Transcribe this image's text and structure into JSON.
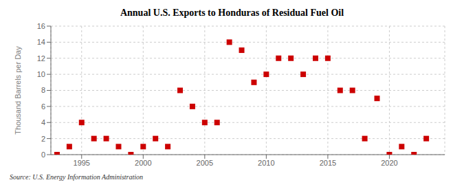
{
  "chart_data": {
    "type": "scatter",
    "title": "Annual U.S. Exports to Honduras of Residual Fuel Oil",
    "y_label": "Thousand Barrels per Day",
    "annotations": [
      "Source: U.S. Energy Information Administration"
    ],
    "x": [
      1993,
      1994,
      1995,
      1996,
      1997,
      1998,
      1999,
      2000,
      2001,
      2002,
      2003,
      2004,
      2005,
      2006,
      2007,
      2008,
      2009,
      2010,
      2011,
      2012,
      2013,
      2014,
      2015,
      2016,
      2017,
      2018,
      2019,
      2020,
      2021,
      2022,
      2023
    ],
    "values": [
      0,
      1,
      4,
      2,
      2,
      1,
      0,
      1,
      2,
      1,
      8,
      6,
      4,
      4,
      14,
      13,
      9,
      10,
      12,
      12,
      10,
      12,
      12,
      8,
      8,
      2,
      7,
      0,
      1,
      0,
      2
    ],
    "color": "#cc0000",
    "marker": "square",
    "xlim": [
      1992.5,
      2024.5
    ],
    "xticks": [
      1995,
      2000,
      2005,
      2010,
      2015,
      2020
    ],
    "ylim": [
      0,
      16
    ],
    "yticks": [
      0,
      2,
      4,
      6,
      8,
      10,
      12,
      14,
      16
    ],
    "grid": true
  }
}
